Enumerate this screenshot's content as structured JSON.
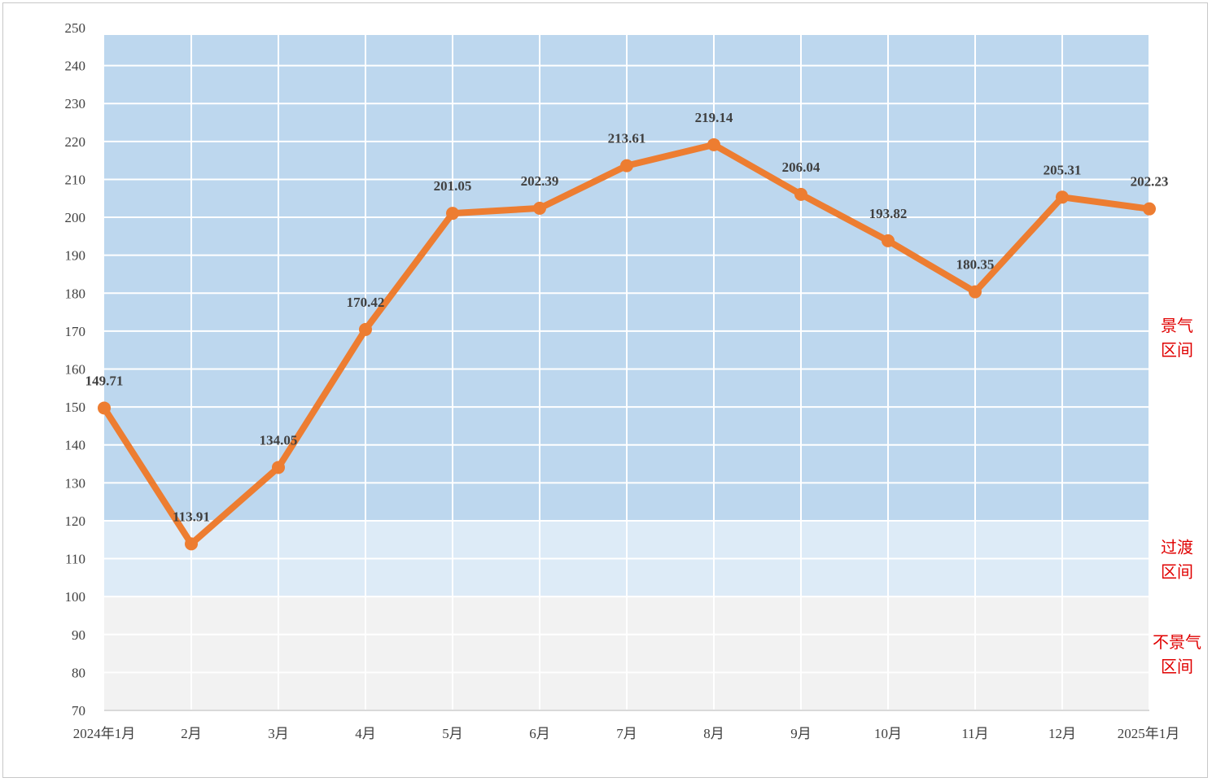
{
  "chart_data": {
    "type": "line",
    "title": "",
    "xlabel": "",
    "ylabel": "",
    "categories": [
      "2024年1月",
      "2月",
      "3月",
      "4月",
      "5月",
      "6月",
      "7月",
      "8月",
      "9月",
      "10月",
      "11月",
      "12月",
      "2025年1月"
    ],
    "series": [
      {
        "values": [
          149.71,
          113.91,
          134.05,
          170.42,
          201.05,
          202.39,
          213.61,
          219.14,
          206.04,
          193.82,
          180.35,
          205.31,
          202.23
        ],
        "labels": [
          "149.71",
          "113.91",
          "134.05",
          "170.42",
          "201.05",
          "202.39",
          "213.61",
          "219.14",
          "206.04",
          "193.82",
          "180.35",
          "205.31",
          "202.23"
        ],
        "color": "#ed7d31"
      }
    ],
    "ylim": [
      70,
      250
    ],
    "yticks": [
      70,
      80,
      90,
      100,
      110,
      120,
      130,
      140,
      150,
      160,
      170,
      180,
      190,
      200,
      210,
      220,
      230,
      240,
      250
    ],
    "grid": true,
    "legend": "none",
    "bands": [
      {
        "from": 120,
        "to": 250,
        "label_lines": [
          "景气",
          "区间"
        ],
        "color": "#bdd7ee"
      },
      {
        "from": 100,
        "to": 120,
        "label_lines": [
          "过渡",
          "区间"
        ],
        "color": "#ddebf7"
      },
      {
        "from": 70,
        "to": 100,
        "label_lines": [
          "不景气",
          "区间"
        ],
        "color": "#f2f2f2"
      }
    ],
    "label_color": "#e00000"
  }
}
